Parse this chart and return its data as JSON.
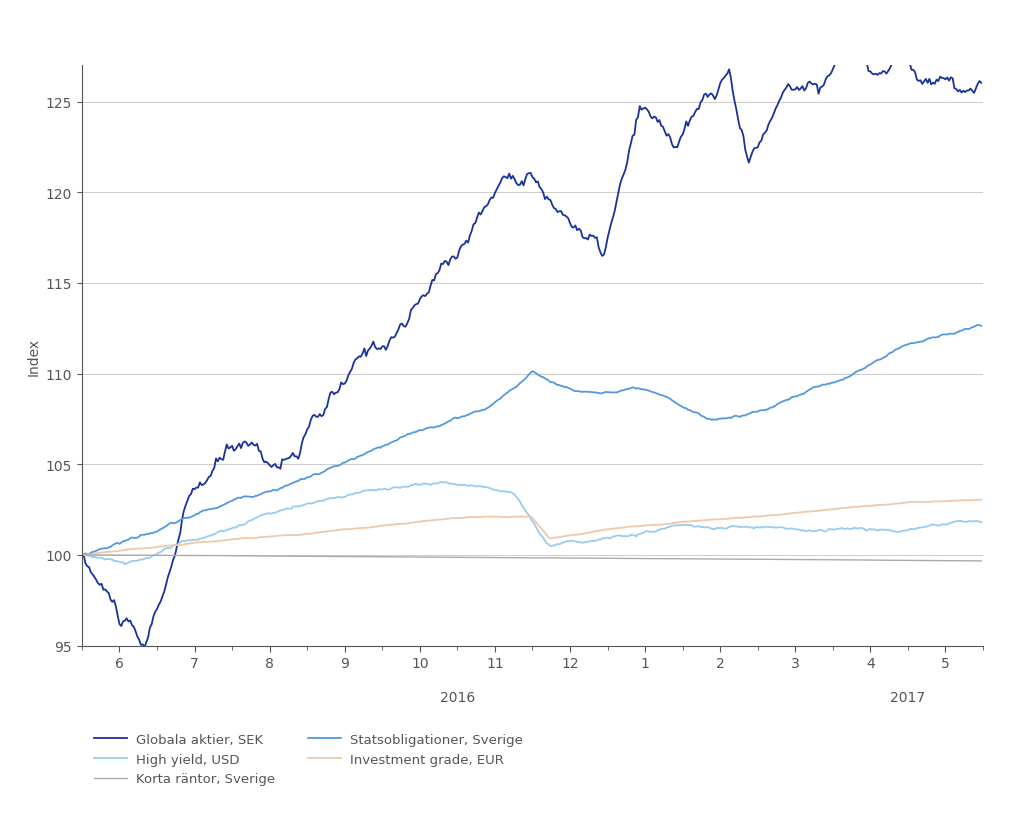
{
  "title": "",
  "ylabel": "Index",
  "ylim": [
    95,
    127
  ],
  "yticks": [
    95,
    100,
    105,
    110,
    115,
    120,
    125
  ],
  "background_color": "#ffffff",
  "plot_bg_color": "#ffffff",
  "text_color": "#555555",
  "grid_color": "#cccccc",
  "series": {
    "globala_aktier_sek": {
      "label": "Globala aktier, SEK",
      "color": "#1a3399",
      "linewidth": 1.3
    },
    "statsobligationer_sverige": {
      "label": "Statsobligationer, Sverige",
      "color": "#5599dd",
      "linewidth": 1.3
    },
    "high_yield_usd": {
      "label": "High yield, USD",
      "color": "#99ccee",
      "linewidth": 1.3
    },
    "investment_grade_eur": {
      "label": "Investment grade, EUR",
      "color": "#f0c8a8",
      "linewidth": 1.3
    },
    "korta_rantor_sverige": {
      "label": "Korta räntor, Sverige",
      "color": "#aaaaaa",
      "linewidth": 1.0
    }
  },
  "xtick_labels": [
    "6",
    "7",
    "8",
    "9",
    "10",
    "11",
    "12",
    "1",
    "2",
    "3",
    "4",
    "5"
  ],
  "year_labels": [
    [
      "2016",
      4.5
    ],
    [
      "2017",
      10.5
    ]
  ],
  "n_points": 504
}
